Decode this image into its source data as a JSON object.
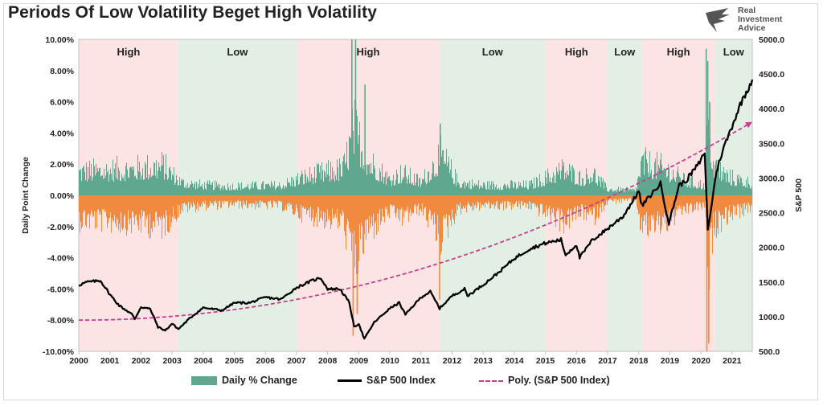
{
  "title": "Periods Of Low Volatility Beget High Volatility",
  "logo": {
    "lines": [
      "Real",
      "Investment",
      "Advice"
    ],
    "icon": "eagle-logo-icon"
  },
  "chart_data": {
    "type": "bar+line",
    "title": "Periods Of Low Volatility Beget High Volatility",
    "ylabel_left": "Daily Point Change",
    "ylabel_right": "S&P 500",
    "ylim_left": [
      -10,
      10
    ],
    "ylim_right": [
      500,
      5000
    ],
    "yticks_left": [
      "10.00%",
      "8.00%",
      "6.00%",
      "4.00%",
      "2.00%",
      "0.00%",
      "-2.00%",
      "-4.00%",
      "-6.00%",
      "-8.00%",
      "-10.00%"
    ],
    "yticks_right": [
      "5000.0",
      "4500.0",
      "4000.0",
      "3500.0",
      "3000.0",
      "2500.0",
      "2000.0",
      "1500.0",
      "1000.0",
      "500.0"
    ],
    "xlim": [
      2000,
      2021.65
    ],
    "xticks": [
      "2000",
      "2001",
      "2002",
      "2003",
      "2004",
      "2005",
      "2006",
      "2007",
      "2008",
      "2009",
      "2010",
      "2011",
      "2012",
      "2013",
      "2014",
      "2015",
      "2016",
      "2017",
      "2018",
      "2019",
      "2020",
      "2021"
    ],
    "regimes": [
      {
        "label": "High",
        "start": 2000.0,
        "end": 2003.2,
        "color": "#fce4e4"
      },
      {
        "label": "Low",
        "start": 2003.2,
        "end": 2007.0,
        "color": "#e3efe5"
      },
      {
        "label": "High",
        "start": 2007.0,
        "end": 2011.6,
        "color": "#fce4e4"
      },
      {
        "label": "Low",
        "start": 2011.6,
        "end": 2015.0,
        "color": "#e3efe5"
      },
      {
        "label": "High",
        "start": 2015.0,
        "end": 2017.0,
        "color": "#fce4e4"
      },
      {
        "label": "Low",
        "start": 2017.0,
        "end": 2018.1,
        "color": "#e3efe5"
      },
      {
        "label": "High",
        "start": 2018.1,
        "end": 2020.45,
        "color": "#fce4e4"
      },
      {
        "label": "Low",
        "start": 2020.45,
        "end": 2021.65,
        "color": "#e3efe5"
      }
    ],
    "volatility_profile": [
      {
        "x": 2000.0,
        "amp": 2.4
      },
      {
        "x": 2001.0,
        "amp": 2.5
      },
      {
        "x": 2002.0,
        "amp": 2.7
      },
      {
        "x": 2002.7,
        "amp": 3.0
      },
      {
        "x": 2003.3,
        "amp": 1.3
      },
      {
        "x": 2004.0,
        "amp": 1.0
      },
      {
        "x": 2005.0,
        "amp": 0.9
      },
      {
        "x": 2006.5,
        "amp": 1.0
      },
      {
        "x": 2007.2,
        "amp": 1.8
      },
      {
        "x": 2008.0,
        "amp": 2.3
      },
      {
        "x": 2008.5,
        "amp": 2.6
      },
      {
        "x": 2008.85,
        "amp": 6.5
      },
      {
        "x": 2009.3,
        "amp": 3.5
      },
      {
        "x": 2010.0,
        "amp": 1.6
      },
      {
        "x": 2010.4,
        "amp": 2.2
      },
      {
        "x": 2011.0,
        "amp": 1.3
      },
      {
        "x": 2011.65,
        "amp": 4.0
      },
      {
        "x": 2012.2,
        "amp": 1.3
      },
      {
        "x": 2013.0,
        "amp": 1.0
      },
      {
        "x": 2014.5,
        "amp": 1.0
      },
      {
        "x": 2015.6,
        "amp": 2.6
      },
      {
        "x": 2016.2,
        "amp": 1.6
      },
      {
        "x": 2016.5,
        "amp": 2.3
      },
      {
        "x": 2017.0,
        "amp": 0.6
      },
      {
        "x": 2017.9,
        "amp": 0.5
      },
      {
        "x": 2018.1,
        "amp": 3.2
      },
      {
        "x": 2018.9,
        "amp": 2.6
      },
      {
        "x": 2019.5,
        "amp": 1.4
      },
      {
        "x": 2020.15,
        "amp": 1.0
      },
      {
        "x": 2020.2,
        "amp": 9.0
      },
      {
        "x": 2020.4,
        "amp": 3.0
      },
      {
        "x": 2020.9,
        "amp": 1.8
      },
      {
        "x": 2021.65,
        "amp": 1.2
      }
    ],
    "spikes": [
      {
        "x": 2008.78,
        "value": 11.6
      },
      {
        "x": 2008.82,
        "value": -9.0
      },
      {
        "x": 2008.9,
        "value": 10.8
      },
      {
        "x": 2008.95,
        "value": -7.6
      },
      {
        "x": 2009.2,
        "value": 7.1
      },
      {
        "x": 2011.6,
        "value": -6.7
      },
      {
        "x": 2011.62,
        "value": 4.6
      },
      {
        "x": 2020.17,
        "value": 9.4
      },
      {
        "x": 2020.19,
        "value": -12.0
      },
      {
        "x": 2020.22,
        "value": 8.6
      },
      {
        "x": 2020.25,
        "value": -9.5
      },
      {
        "x": 2020.28,
        "value": 6.0
      }
    ],
    "sp500": [
      {
        "x": 2000.0,
        "y": 1455
      },
      {
        "x": 2000.25,
        "y": 1498
      },
      {
        "x": 2000.7,
        "y": 1520
      },
      {
        "x": 2001.0,
        "y": 1320
      },
      {
        "x": 2001.3,
        "y": 1160
      },
      {
        "x": 2001.7,
        "y": 1040
      },
      {
        "x": 2001.8,
        "y": 965
      },
      {
        "x": 2002.0,
        "y": 1140
      },
      {
        "x": 2002.3,
        "y": 1110
      },
      {
        "x": 2002.55,
        "y": 850
      },
      {
        "x": 2002.78,
        "y": 800
      },
      {
        "x": 2003.0,
        "y": 900
      },
      {
        "x": 2003.2,
        "y": 820
      },
      {
        "x": 2003.6,
        "y": 990
      },
      {
        "x": 2004.0,
        "y": 1130
      },
      {
        "x": 2004.6,
        "y": 1090
      },
      {
        "x": 2005.0,
        "y": 1200
      },
      {
        "x": 2005.5,
        "y": 1200
      },
      {
        "x": 2006.0,
        "y": 1280
      },
      {
        "x": 2006.5,
        "y": 1250
      },
      {
        "x": 2007.0,
        "y": 1420
      },
      {
        "x": 2007.5,
        "y": 1520
      },
      {
        "x": 2007.78,
        "y": 1560
      },
      {
        "x": 2008.0,
        "y": 1400
      },
      {
        "x": 2008.4,
        "y": 1400
      },
      {
        "x": 2008.7,
        "y": 1200
      },
      {
        "x": 2008.85,
        "y": 850
      },
      {
        "x": 2009.0,
        "y": 900
      },
      {
        "x": 2009.18,
        "y": 680
      },
      {
        "x": 2009.5,
        "y": 920
      },
      {
        "x": 2010.0,
        "y": 1120
      },
      {
        "x": 2010.3,
        "y": 1200
      },
      {
        "x": 2010.5,
        "y": 1030
      },
      {
        "x": 2011.0,
        "y": 1280
      },
      {
        "x": 2011.3,
        "y": 1360
      },
      {
        "x": 2011.6,
        "y": 1120
      },
      {
        "x": 2012.0,
        "y": 1300
      },
      {
        "x": 2012.4,
        "y": 1400
      },
      {
        "x": 2012.5,
        "y": 1300
      },
      {
        "x": 2013.0,
        "y": 1460
      },
      {
        "x": 2013.5,
        "y": 1640
      },
      {
        "x": 2014.0,
        "y": 1840
      },
      {
        "x": 2014.5,
        "y": 1980
      },
      {
        "x": 2015.0,
        "y": 2060
      },
      {
        "x": 2015.5,
        "y": 2110
      },
      {
        "x": 2015.65,
        "y": 1890
      },
      {
        "x": 2016.0,
        "y": 2040
      },
      {
        "x": 2016.1,
        "y": 1850
      },
      {
        "x": 2016.5,
        "y": 2100
      },
      {
        "x": 2017.0,
        "y": 2270
      },
      {
        "x": 2017.5,
        "y": 2450
      },
      {
        "x": 2018.0,
        "y": 2810
      },
      {
        "x": 2018.1,
        "y": 2600
      },
      {
        "x": 2018.7,
        "y": 2920
      },
      {
        "x": 2018.97,
        "y": 2350
      },
      {
        "x": 2019.3,
        "y": 2900
      },
      {
        "x": 2019.5,
        "y": 2950
      },
      {
        "x": 2020.0,
        "y": 3250
      },
      {
        "x": 2020.12,
        "y": 3380
      },
      {
        "x": 2020.22,
        "y": 2240
      },
      {
        "x": 2020.5,
        "y": 3100
      },
      {
        "x": 2020.7,
        "y": 3400
      },
      {
        "x": 2021.0,
        "y": 3750
      },
      {
        "x": 2021.3,
        "y": 4100
      },
      {
        "x": 2021.65,
        "y": 4420
      }
    ],
    "poly_fit": {
      "coefficients": [
        950,
        0,
        6.1
      ],
      "form": "950 + 6.1*(year-2000)^2"
    },
    "legend": [
      {
        "name": "Daily % Change",
        "color": "#5fa88f",
        "style": "bar"
      },
      {
        "name": "S&P 500 Index",
        "color": "#000000",
        "style": "solid"
      },
      {
        "name": "Poly. (S&P 500 Index)",
        "color": "#c2418f",
        "style": "dashed"
      }
    ],
    "colors": {
      "positive": "#5fa88f",
      "negative": "#f08a3e",
      "line": "#000000",
      "trend": "#c2418f"
    }
  }
}
